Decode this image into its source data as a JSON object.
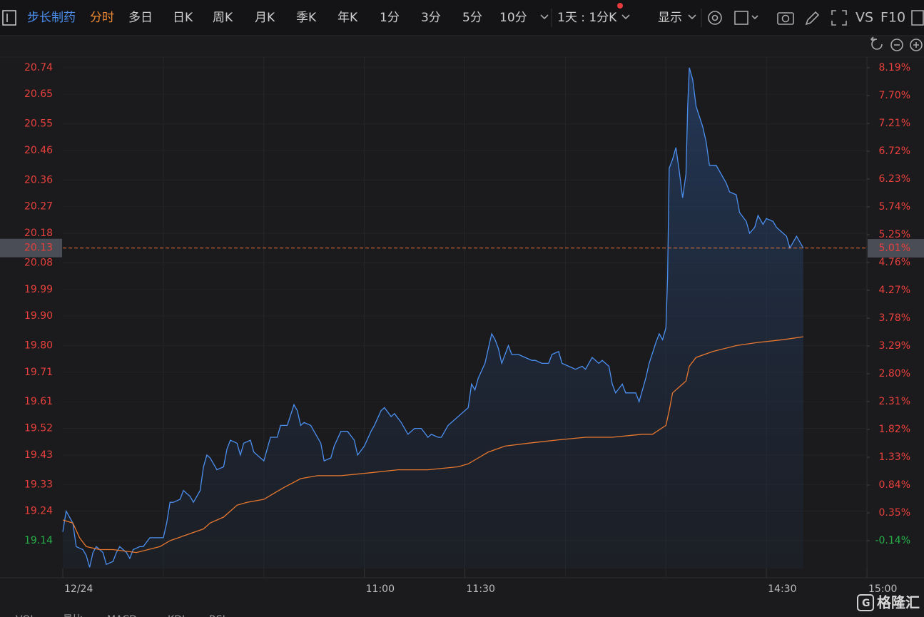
{
  "toolbar": {
    "stock": "步长制药",
    "tabs": [
      "分时",
      "多日",
      "日K",
      "周K",
      "月K",
      "季K",
      "年K",
      "1分",
      "3分",
      "5分",
      "10分"
    ],
    "period": "1天 : 1分K",
    "display": "显示",
    "vs": "VS",
    "f10": "F10"
  },
  "bottom_tabs": [
    "VOL",
    "量比",
    "MACD",
    "KDJ",
    "RSI"
  ],
  "watermark": "格隆汇",
  "chart_data": {
    "type": "line",
    "xlim": [
      0,
      240
    ],
    "xticks": [
      {
        "value": 0,
        "label": "12/24"
      },
      {
        "value": 90,
        "label": "11:00"
      },
      {
        "value": 120,
        "label": "11:30"
      },
      {
        "value": 210,
        "label": "14:30"
      },
      {
        "value": 240,
        "label": "15:00"
      }
    ],
    "ylim": [
      19.046,
      20.776
    ],
    "yticks": [
      20.74,
      20.65,
      20.55,
      20.46,
      20.36,
      20.27,
      20.18,
      20.08,
      19.99,
      {
        "value": 19.9,
        "label": "19.90"
      },
      {
        "value": 19.8,
        "label": "19.80"
      },
      19.71,
      19.61,
      19.52,
      19.43,
      19.33,
      19.24,
      19.14
    ],
    "y2lim": [
      -0.63,
      8.378
    ],
    "y2ticks": [
      {
        "value": 8.19,
        "label": "8.19%"
      },
      {
        "value": 7.7,
        "label": "7.70%"
      },
      {
        "value": 7.21,
        "label": "7.21%"
      },
      {
        "value": 6.72,
        "label": "6.72%"
      },
      {
        "value": 6.23,
        "label": "6.23%"
      },
      {
        "value": 5.74,
        "label": "5.74%"
      },
      {
        "value": 5.25,
        "label": "5.25%"
      },
      {
        "value": 4.76,
        "label": "4.76%"
      },
      {
        "value": 4.27,
        "label": "4.27%"
      },
      {
        "value": 3.78,
        "label": "3.78%"
      },
      {
        "value": 3.29,
        "label": "3.29%"
      },
      {
        "value": 2.8,
        "label": "2.80%"
      },
      {
        "value": 2.31,
        "label": "2.31%"
      },
      {
        "value": 1.82,
        "label": "1.82%"
      },
      {
        "value": 1.33,
        "label": "1.33%"
      },
      {
        "value": 0.84,
        "label": "0.84%"
      },
      {
        "value": 0.35,
        "label": "0.35%"
      },
      {
        "value": -0.14,
        "label": "-0.14%"
      }
    ],
    "grid": true,
    "last_price": 20.13,
    "last_change": {
      "value": 5.01,
      "label": "5.01%"
    },
    "series": [
      {
        "color": "#4b8ff0",
        "x": [
          0,
          1,
          3,
          4,
          6,
          7,
          8,
          9,
          10,
          12,
          13,
          15,
          16,
          17,
          19,
          20,
          21,
          23,
          24,
          26,
          29,
          30,
          31,
          32,
          33,
          35,
          36,
          38,
          39,
          41,
          42,
          43,
          44,
          46,
          48,
          49,
          50,
          52,
          53,
          54,
          56,
          57,
          59,
          60,
          62,
          64,
          65,
          67,
          69,
          70,
          71,
          72,
          74,
          75,
          77,
          78,
          80,
          81,
          83,
          85,
          87,
          88,
          90,
          92,
          93,
          95,
          96,
          98,
          99,
          101,
          103,
          105,
          107,
          109,
          110,
          112,
          113,
          115,
          117,
          119,
          121,
          122,
          123,
          124,
          126,
          128,
          129,
          130,
          131,
          133,
          134,
          136,
          138,
          140,
          141,
          143,
          145,
          146,
          148,
          149,
          151,
          153,
          155,
          156,
          158,
          160,
          161,
          163,
          164,
          165,
          167,
          168,
          169,
          171,
          172,
          173,
          174,
          175,
          177,
          178,
          179,
          180,
          180.5,
          181,
          182,
          183,
          184,
          185,
          186,
          186.5,
          187,
          188,
          189,
          191,
          192,
          193,
          195,
          196,
          198,
          199,
          201,
          202,
          204,
          205,
          206.5,
          207.5,
          209,
          210,
          212,
          213,
          214,
          216,
          217,
          219,
          220,
          221
        ],
        "values": [
          19.17,
          19.24,
          19.2,
          19.12,
          19.11,
          19.09,
          19.05,
          19.1,
          19.12,
          19.1,
          19.06,
          19.07,
          19.1,
          19.12,
          19.1,
          19.08,
          19.11,
          19.12,
          19.12,
          19.15,
          19.15,
          19.15,
          19.2,
          19.27,
          19.27,
          19.28,
          19.31,
          19.29,
          19.27,
          19.31,
          19.39,
          19.43,
          19.42,
          19.38,
          19.39,
          19.45,
          19.48,
          19.47,
          19.43,
          19.47,
          19.48,
          19.44,
          19.42,
          19.41,
          19.49,
          19.49,
          19.53,
          19.53,
          19.6,
          19.58,
          19.53,
          19.54,
          19.53,
          19.51,
          19.47,
          19.41,
          19.42,
          19.46,
          19.51,
          19.51,
          19.48,
          19.43,
          19.46,
          19.51,
          19.53,
          19.58,
          19.59,
          19.56,
          19.57,
          19.54,
          19.5,
          19.52,
          19.52,
          19.49,
          19.5,
          19.49,
          19.49,
          19.53,
          19.55,
          19.57,
          19.59,
          19.67,
          19.65,
          19.69,
          19.74,
          19.84,
          19.82,
          19.79,
          19.74,
          19.8,
          19.77,
          19.77,
          19.76,
          19.75,
          19.75,
          19.74,
          19.74,
          19.77,
          19.78,
          19.74,
          19.73,
          19.72,
          19.73,
          19.72,
          19.76,
          19.74,
          19.75,
          19.73,
          19.67,
          19.64,
          19.67,
          19.64,
          19.64,
          19.64,
          19.61,
          19.65,
          19.69,
          19.74,
          19.81,
          19.84,
          19.82,
          19.86,
          20.03,
          20.4,
          20.43,
          20.47,
          20.39,
          20.3,
          20.38,
          20.61,
          20.74,
          20.7,
          20.61,
          20.54,
          20.49,
          20.41,
          20.41,
          20.39,
          20.35,
          20.32,
          20.31,
          20.25,
          20.22,
          20.18,
          20.2,
          20.24,
          20.21,
          20.23,
          20.22,
          20.2,
          20.19,
          20.17,
          20.13,
          20.17,
          20.15,
          20.13
        ]
      },
      {
        "color": "#e8772e",
        "x": [
          0,
          3,
          5,
          7,
          11,
          15,
          22,
          29,
          32,
          37,
          42,
          44,
          48,
          52,
          55,
          60,
          63,
          66,
          71,
          76,
          83,
          92,
          100,
          109,
          118,
          121,
          124,
          127,
          132,
          139,
          147,
          156,
          164,
          173,
          176,
          180,
          181,
          182,
          185,
          186,
          187,
          189,
          194,
          201,
          207,
          215,
          221
        ],
        "values": [
          19.21,
          19.2,
          19.15,
          19.12,
          19.11,
          19.11,
          19.1,
          19.12,
          19.14,
          19.16,
          19.18,
          19.2,
          19.22,
          19.26,
          19.27,
          19.28,
          19.3,
          19.32,
          19.35,
          19.36,
          19.36,
          19.37,
          19.38,
          19.38,
          19.39,
          19.4,
          19.42,
          19.44,
          19.46,
          19.47,
          19.48,
          19.49,
          19.49,
          19.5,
          19.5,
          19.53,
          19.58,
          19.64,
          19.67,
          19.68,
          19.73,
          19.76,
          19.78,
          19.8,
          19.81,
          19.82,
          19.83
        ]
      }
    ]
  }
}
